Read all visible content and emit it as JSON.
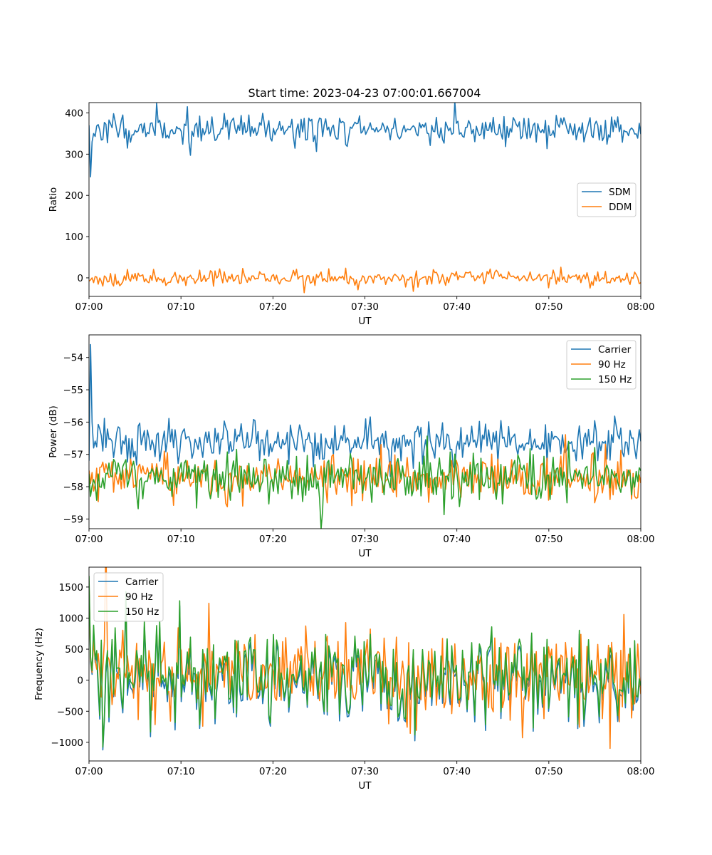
{
  "title": "Start time: 2023-04-23 07:00:01.667004",
  "colors": {
    "blue": "#1f77b4",
    "orange": "#ff7f0e",
    "green": "#2ca02c"
  },
  "chart_data": [
    {
      "type": "line",
      "ylabel": "Ratio",
      "xlabel": "UT",
      "x_ticks": [
        "07:00",
        "07:10",
        "07:20",
        "07:30",
        "07:40",
        "07:50",
        "08:00"
      ],
      "x_range_minutes": [
        0,
        60
      ],
      "ylim": [
        -45,
        425
      ],
      "y_ticks": [
        0,
        100,
        200,
        300,
        400
      ],
      "y_tick_labels": [
        "0",
        "100",
        "200",
        "300",
        "400"
      ],
      "legend": "center-right",
      "series": [
        {
          "name": "SDM",
          "color": "#1f77b4",
          "base": 360,
          "amp": 18,
          "seed": 11,
          "start_values": [
            370,
            245,
            330,
            350
          ]
        },
        {
          "name": "DDM",
          "color": "#ff7f0e",
          "base": 0,
          "amp": 9,
          "seed": 23,
          "start_values": [
            -8,
            -5,
            0
          ]
        }
      ]
    },
    {
      "type": "line",
      "ylabel": "Power (dB)",
      "xlabel": "UT",
      "x_ticks": [
        "07:00",
        "07:10",
        "07:20",
        "07:30",
        "07:40",
        "07:50",
        "08:00"
      ],
      "x_range_minutes": [
        0,
        60
      ],
      "ylim": [
        -59.3,
        -53.3
      ],
      "y_ticks": [
        -59,
        -58,
        -57,
        -56,
        -55,
        -54
      ],
      "y_tick_labels": [
        "−59",
        "−58",
        "−57",
        "−56",
        "−55",
        "−54"
      ],
      "legend": "top-right",
      "series": [
        {
          "name": "Carrier",
          "color": "#1f77b4",
          "base": -56.6,
          "amp": 0.32,
          "seed": 5,
          "start_values": [
            -57.2,
            -53.6,
            -56.0,
            -56.8
          ]
        },
        {
          "name": "90 Hz",
          "color": "#ff7f0e",
          "base": -57.75,
          "amp": 0.35,
          "seed": 37,
          "start_values": [
            -57.5,
            -57.9
          ]
        },
        {
          "name": "150 Hz",
          "color": "#2ca02c",
          "base": -57.7,
          "amp": 0.38,
          "seed": 71,
          "start_values": [
            -57.6,
            -58.3
          ]
        }
      ]
    },
    {
      "type": "line",
      "ylabel": "Frequency (Hz)",
      "xlabel": "UT",
      "x_ticks": [
        "07:00",
        "07:10",
        "07:20",
        "07:30",
        "07:40",
        "07:50",
        "08:00"
      ],
      "x_range_minutes": [
        0,
        60
      ],
      "ylim": [
        -1300,
        1820
      ],
      "y_ticks": [
        -1000,
        -500,
        0,
        500,
        1000,
        1500
      ],
      "y_tick_labels": [
        "−1000",
        "−500",
        "0",
        "500",
        "1000",
        "1500"
      ],
      "legend": "top-left",
      "series": [
        {
          "name": "Carrier",
          "color": "#1f77b4",
          "base": 50,
          "amp": 380,
          "seed": 97,
          "offset": -40,
          "start_values": [
            1500,
            300
          ]
        },
        {
          "name": "90 Hz",
          "color": "#ff7f0e",
          "base": 50,
          "amp": 380,
          "seed": 97,
          "offset": 0,
          "start_values": [
            1600,
            340
          ]
        },
        {
          "name": "150 Hz",
          "color": "#2ca02c",
          "base": 50,
          "amp": 380,
          "seed": 97,
          "offset": 40,
          "start_values": [
            1680,
            380
          ]
        }
      ]
    }
  ]
}
